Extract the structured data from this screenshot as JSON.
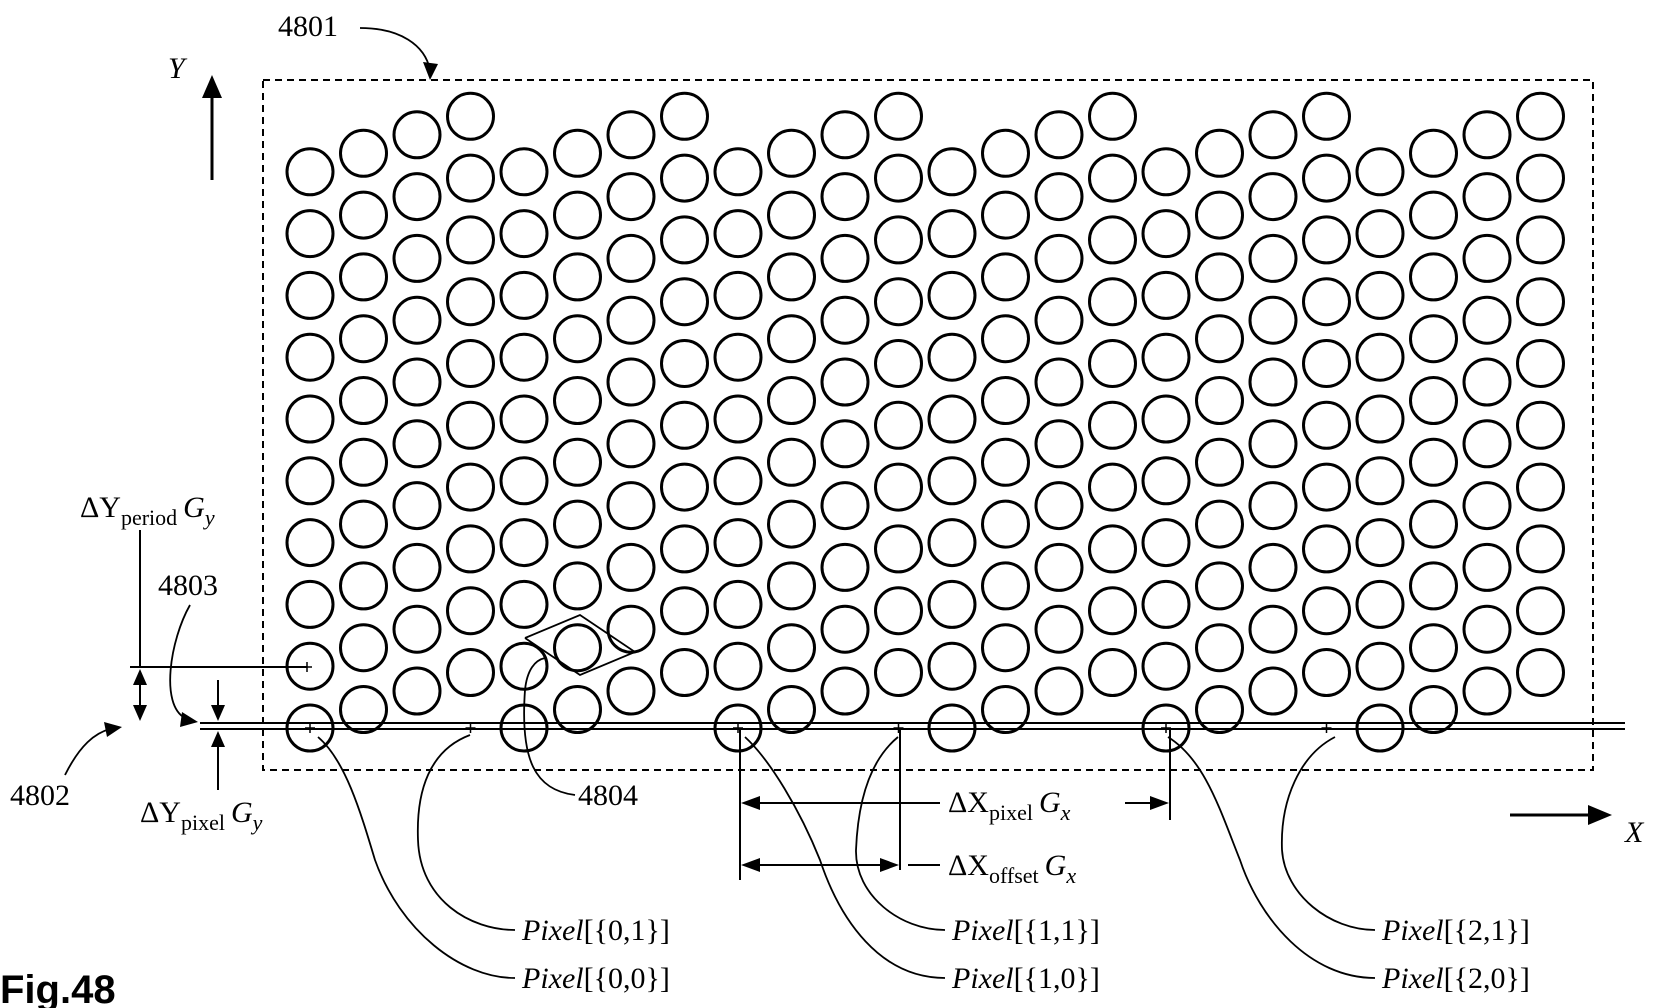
{
  "figure": {
    "title": "Fig.48",
    "labels": {
      "ref_4801": "4801",
      "ref_4802": "4802",
      "ref_4803": "4803",
      "ref_4804": "4804",
      "axis_y": "Y",
      "axis_x": "X"
    },
    "dimensions": {
      "dy_period": {
        "base": "ΔY",
        "sub": "period",
        "factor": "G",
        "factor_sub": "y"
      },
      "dy_pixel": {
        "base": "ΔY",
        "sub": "pixel",
        "factor": "G",
        "factor_sub": "y"
      },
      "dx_pixel": {
        "base": "ΔX",
        "sub": "pixel",
        "factor": "G",
        "factor_sub": "x"
      },
      "dx_offset": {
        "base": "ΔX",
        "sub": "offset",
        "factor": "G",
        "factor_sub": "x"
      }
    },
    "pixel_labels": [
      {
        "prefix": "Pixel",
        "index": "[{0,1}]"
      },
      {
        "prefix": "Pixel",
        "index": "[{0,0}]"
      },
      {
        "prefix": "Pixel",
        "index": "[{1,1}]"
      },
      {
        "prefix": "Pixel",
        "index": "[{1,0}]"
      },
      {
        "prefix": "Pixel",
        "index": "[{2,1}]"
      },
      {
        "prefix": "Pixel",
        "index": "[{2,0}]"
      }
    ],
    "lattice": {
      "columns": 24,
      "rows": 10,
      "column_phase_step": 1,
      "phase_cycle": [
        0,
        1,
        2,
        3,
        0,
        1,
        2,
        3,
        0,
        1,
        2,
        3,
        0,
        1,
        2,
        3,
        0,
        1,
        2,
        3,
        0,
        1,
        2,
        3
      ],
      "marked_columns": [
        0,
        3,
        8,
        11,
        16,
        19
      ]
    }
  }
}
